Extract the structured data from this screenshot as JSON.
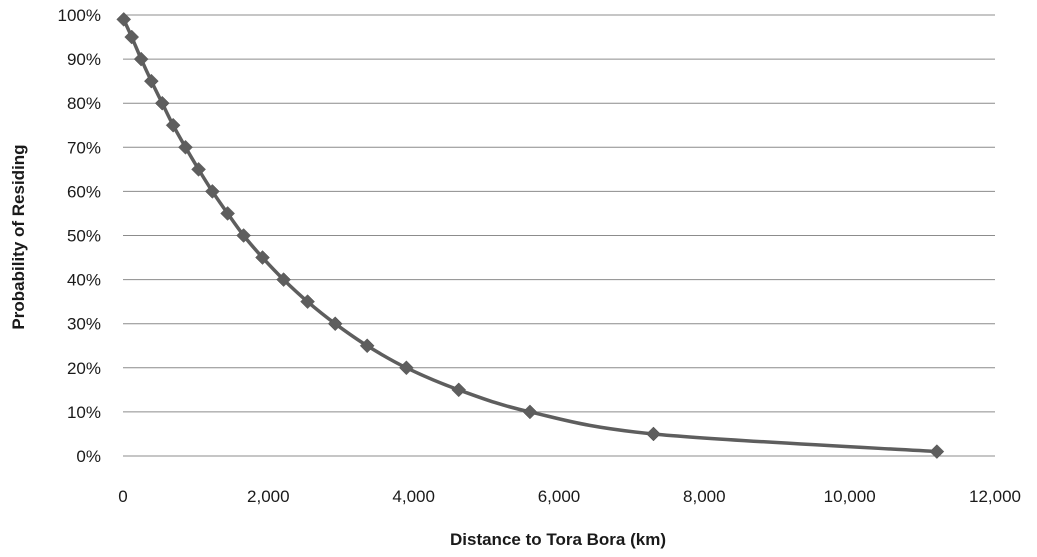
{
  "chart_data": {
    "type": "line",
    "title": "",
    "xlabel": "Distance to Tora Bora (km)",
    "ylabel": "Probability of Residing",
    "xlim": [
      0,
      12000
    ],
    "ylim": [
      0,
      100
    ],
    "x_ticks": [
      0,
      2000,
      4000,
      6000,
      8000,
      10000,
      12000
    ],
    "x_tick_labels": [
      "0",
      "2,000",
      "4,000",
      "6,000",
      "8,000",
      "10,000",
      "12,000"
    ],
    "y_ticks": [
      0,
      10,
      20,
      30,
      40,
      50,
      60,
      70,
      80,
      90,
      100
    ],
    "y_tick_labels": [
      "0%",
      "10%",
      "20%",
      "30%",
      "40%",
      "50%",
      "60%",
      "70%",
      "80%",
      "90%",
      "100%"
    ],
    "grid": "horizontal",
    "legend": "none",
    "marker": "diamond",
    "color": "#5e5e5e",
    "series": [
      {
        "x": [
          10,
          120,
          250,
          390,
          540,
          690,
          860,
          1040,
          1230,
          1440,
          1660,
          1920,
          2210,
          2540,
          2920,
          3360,
          3900,
          4620,
          5600,
          7300,
          11200
        ],
        "y": [
          99,
          95,
          90,
          85,
          80,
          75,
          70,
          65,
          60,
          55,
          50,
          45,
          40,
          35,
          30,
          25,
          20,
          15,
          10,
          5,
          1
        ]
      }
    ]
  }
}
